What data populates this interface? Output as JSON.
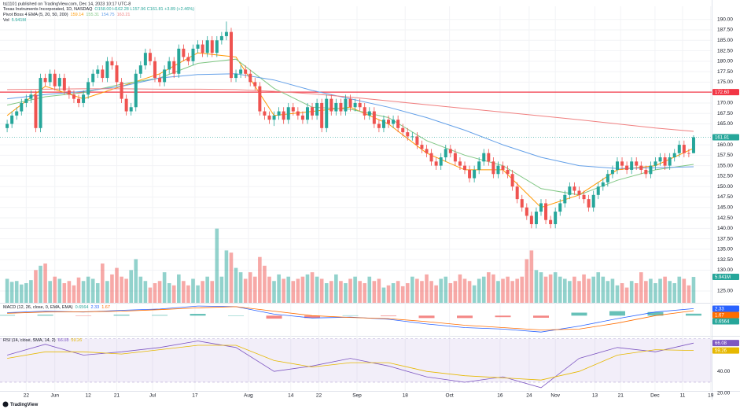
{
  "header": {
    "published": "ts|1101 published on TradingView.com, Dec 14, 2023 10:17 UTC-8",
    "footer": "TradingView"
  },
  "chart_data": {
    "type": "candlestick",
    "title": "Texas Instruments Incorporated, 1D, NASDAQ",
    "ohlc_text": "O158.00 H162.28 L157.96 C161.81 +3.89 (+2.46%)",
    "up_color": "#26a69a",
    "down_color": "#ef5350",
    "open": [
      164,
      165,
      167,
      168,
      170,
      171,
      172,
      164,
      176,
      175,
      177,
      174,
      176,
      173,
      172,
      171,
      170,
      172,
      175,
      177,
      178,
      176,
      180,
      179,
      175,
      171,
      168,
      169,
      177,
      179,
      182,
      180,
      176,
      175,
      178,
      180,
      177,
      183,
      181,
      180,
      183,
      184,
      182,
      185,
      182,
      185,
      186,
      187,
      176,
      177,
      178,
      177,
      175,
      174,
      168,
      167,
      166,
      167,
      168,
      166,
      169,
      168,
      167,
      166,
      169,
      167,
      170,
      164,
      171,
      168,
      170,
      168,
      171,
      169,
      170,
      169,
      167,
      168,
      165,
      164,
      166,
      165,
      166,
      164,
      163,
      162,
      162,
      160,
      159,
      158,
      156,
      155,
      157,
      159,
      158,
      156,
      155,
      154,
      152,
      154,
      156,
      158,
      156,
      153,
      155,
      154,
      153,
      150,
      147,
      145,
      143,
      141,
      144,
      146,
      142,
      141,
      144,
      146,
      148,
      150,
      149,
      148,
      147,
      145,
      148,
      150,
      151,
      153,
      154,
      156,
      155,
      154,
      156,
      155,
      154,
      153,
      155,
      156,
      157,
      155,
      157,
      158,
      160,
      158,
      158
    ],
    "high": [
      166,
      168,
      169,
      171,
      172,
      173,
      173,
      177,
      177,
      178,
      178,
      177,
      177,
      174,
      173,
      172,
      173,
      176,
      178,
      179,
      179,
      181,
      181,
      180,
      176,
      172,
      170,
      178,
      180,
      183,
      183,
      181,
      177,
      179,
      181,
      181,
      184,
      184,
      182,
      184,
      185,
      185,
      186,
      186,
      186,
      187,
      189.5,
      188,
      178,
      179,
      179,
      178,
      176,
      175,
      169,
      168,
      168,
      169,
      169,
      170,
      170,
      169,
      168,
      170,
      170,
      171,
      171,
      172,
      172,
      171,
      171,
      172,
      172,
      171,
      171,
      170,
      169,
      169,
      166,
      167,
      167,
      167,
      167,
      165,
      164,
      163,
      163,
      161,
      160,
      159,
      157,
      158,
      160,
      160,
      159,
      157,
      156,
      155,
      155,
      157,
      159,
      159,
      157,
      156,
      156,
      155,
      154,
      151,
      148,
      146,
      144,
      145,
      147,
      147,
      143,
      145,
      147,
      149,
      151,
      151,
      150,
      149,
      148,
      149,
      151,
      152,
      154,
      155,
      157,
      157,
      156,
      157,
      157,
      156,
      155,
      156,
      157,
      158,
      158,
      158,
      159,
      161,
      161,
      159,
      162.28
    ],
    "low": [
      163,
      164,
      166,
      167,
      169,
      170,
      163,
      163,
      174,
      174,
      173,
      173,
      172,
      171,
      170,
      169,
      169,
      171,
      174,
      176,
      175,
      175,
      178,
      174,
      170,
      167,
      167,
      168,
      176,
      178,
      179,
      175,
      174,
      174,
      177,
      176,
      176,
      180,
      179,
      179,
      182,
      181,
      181,
      181,
      181,
      184,
      185,
      175,
      175,
      176,
      176,
      174,
      173,
      167,
      166,
      165,
      164.5,
      166,
      165,
      165,
      167,
      166,
      165,
      165,
      166,
      166,
      163,
      163,
      167,
      167,
      167,
      167,
      168,
      168,
      168,
      166,
      166,
      164,
      163,
      163,
      164,
      164,
      163,
      162,
      161,
      161,
      159,
      158,
      157,
      155,
      154,
      154,
      156,
      157,
      155,
      154,
      153,
      151,
      151,
      153,
      155,
      155,
      152,
      152,
      153,
      152,
      149,
      146,
      144,
      142,
      140,
      140,
      143,
      141,
      140,
      140,
      143,
      145,
      147,
      148,
      147,
      146,
      144,
      144,
      147,
      149,
      150,
      152,
      153,
      154,
      153,
      153,
      154,
      153,
      152,
      152,
      154,
      155,
      154,
      154,
      156,
      157,
      157,
      157,
      157.96
    ],
    "close": [
      165,
      167,
      168,
      170,
      171,
      172,
      164,
      176,
      175,
      177,
      174,
      176,
      173,
      172,
      171,
      170,
      172,
      175,
      177,
      178,
      176,
      180,
      179,
      175,
      171,
      168,
      169,
      177,
      179,
      182,
      180,
      176,
      175,
      178,
      180,
      177,
      183,
      181,
      180,
      183,
      184,
      182,
      185,
      182,
      185,
      186,
      187,
      176,
      177,
      178,
      177,
      175,
      174,
      168,
      167,
      166,
      167,
      168,
      166,
      169,
      168,
      167,
      166,
      169,
      167,
      170,
      164,
      171,
      168,
      170,
      168,
      171,
      169,
      170,
      169,
      167,
      168,
      165,
      164,
      166,
      165,
      166,
      164,
      163,
      162,
      162,
      160,
      159,
      158,
      156,
      155,
      157,
      159,
      158,
      156,
      155,
      154,
      152,
      154,
      156,
      158,
      156,
      153,
      155,
      154,
      153,
      150,
      147,
      145,
      143,
      141,
      144,
      146,
      142,
      141,
      144,
      146,
      148,
      150,
      149,
      148,
      147,
      145,
      148,
      150,
      151,
      153,
      154,
      156,
      155,
      154,
      156,
      155,
      154,
      153,
      155,
      156,
      157,
      155,
      157,
      158,
      160,
      158,
      157.9,
      161.81
    ],
    "xlim": [
      -1.5,
      147.8
    ],
    "xticks": [
      {
        "value": 4,
        "label": "22"
      },
      {
        "value": 10,
        "label": "Jun"
      },
      {
        "value": 17,
        "label": "12"
      },
      {
        "value": 23,
        "label": "21"
      },
      {
        "value": 30.5,
        "label": "Jul"
      },
      {
        "value": 39.4,
        "label": "17"
      },
      {
        "value": 50.6,
        "label": "Aug"
      },
      {
        "value": 59.5,
        "label": "14"
      },
      {
        "value": 65.4,
        "label": "22"
      },
      {
        "value": 73.4,
        "label": "Sep"
      },
      {
        "value": 83.5,
        "label": "18"
      },
      {
        "value": 92.8,
        "label": "Oct"
      },
      {
        "value": 103.4,
        "label": "16"
      },
      {
        "value": 109.5,
        "label": "24"
      },
      {
        "value": 115,
        "label": "Nov"
      },
      {
        "value": 123.3,
        "label": "13"
      },
      {
        "value": 128.7,
        "label": "21"
      },
      {
        "value": 135.9,
        "label": "Dec"
      },
      {
        "value": 141.7,
        "label": "11"
      },
      {
        "value": 147.6,
        "label": "19"
      }
    ],
    "ylim": [
      125,
      190
    ],
    "yticks": [
      {
        "value": 190,
        "label": "190.00"
      },
      {
        "value": 187.5,
        "label": "187.50"
      },
      {
        "value": 185,
        "label": "185.00"
      },
      {
        "value": 182.5,
        "label": "182.50"
      },
      {
        "value": 180,
        "label": "180.00"
      },
      {
        "value": 177.5,
        "label": "177.50"
      },
      {
        "value": 175,
        "label": "175.00"
      },
      {
        "value": 170,
        "label": "170.00"
      },
      {
        "value": 167.5,
        "label": "167.50"
      },
      {
        "value": 165,
        "label": "165.00"
      },
      {
        "value": 160,
        "label": "160.00"
      },
      {
        "value": 157.5,
        "label": "157.50"
      },
      {
        "value": 155,
        "label": "155.00"
      },
      {
        "value": 152.5,
        "label": "152.50"
      },
      {
        "value": 150,
        "label": "150.00"
      },
      {
        "value": 147.5,
        "label": "147.50"
      },
      {
        "value": 145,
        "label": "145.00"
      },
      {
        "value": 142.5,
        "label": "142.50"
      },
      {
        "value": 140,
        "label": "140.00"
      },
      {
        "value": 137.5,
        "label": "137.50"
      },
      {
        "value": 135,
        "label": "135.00"
      },
      {
        "value": 132.5,
        "label": "132.50"
      },
      {
        "value": 130,
        "label": "130.00"
      },
      {
        "value": 125,
        "label": "125.00"
      }
    ],
    "hline": {
      "value": 172.6,
      "label": "172.60",
      "color": "#f23645"
    },
    "volume": {
      "name": "Vol",
      "ylim": [
        0,
        60
      ],
      "last_label": "5.941M",
      "values": [
        5.5,
        4.8,
        5,
        4.2,
        4.5,
        5.2,
        7.5,
        8.5,
        9,
        5,
        6,
        5.5,
        4.5,
        5,
        4,
        5.8,
        5,
        6,
        5.5,
        4.5,
        9,
        5,
        6.5,
        8,
        6,
        5.5,
        7.5,
        10,
        6,
        5,
        3.5,
        4.5,
        5,
        7,
        4.5,
        4,
        6.5,
        5,
        4,
        5.5,
        4,
        5,
        6,
        5,
        17,
        6,
        12,
        11.5,
        8,
        7,
        5.5,
        7,
        6,
        10.5,
        8.5,
        6,
        5,
        6.5,
        5.5,
        6,
        5,
        5.5,
        6,
        6.5,
        7,
        6,
        5.5,
        4.5,
        5,
        6.5,
        5,
        4.5,
        5.5,
        6,
        5,
        4.5,
        6,
        5,
        5.5,
        3.5,
        4,
        4.5,
        5,
        3.8,
        4.5,
        6,
        5.5,
        5,
        6.5,
        5,
        4,
        5.5,
        6,
        4.5,
        5,
        6.5,
        5.5,
        5,
        4,
        5.5,
        6,
        7,
        6.5,
        5,
        5.5,
        6,
        5,
        5.5,
        6,
        10,
        12,
        7.5,
        7,
        6,
        6.5,
        7,
        6,
        5.5,
        5,
        6,
        5,
        6.5,
        5.5,
        6,
        7,
        6,
        5,
        5.5,
        4,
        4.5,
        3.5,
        5,
        4.5,
        7,
        5,
        5.5,
        4.5,
        5.5,
        6,
        5,
        4.5,
        6,
        5.5,
        4,
        5.941
      ]
    },
    "indicator_x": [
      0,
      8,
      16,
      24,
      32,
      40,
      48,
      56,
      64,
      72,
      80,
      88,
      96,
      104,
      112,
      120,
      128,
      136,
      144
    ],
    "ema": {
      "name": "Pivot Boss 4 EMA (5, 20, 50, 200)",
      "series": [
        {
          "color": "#ff9800",
          "values": [
            167,
            174,
            171,
            174,
            177,
            182,
            181,
            167,
            168,
            169,
            165,
            158,
            154,
            154,
            145,
            148,
            154,
            155,
            159.14
          ]
        },
        {
          "color": "#81c784",
          "values": [
            169.5,
            171.5,
            172.5,
            174.5,
            176,
            179.5,
            180.5,
            173.5,
            169,
            168.5,
            166.5,
            161,
            157.5,
            155,
            149.5,
            148,
            151.5,
            154,
            155.31
          ]
        },
        {
          "color": "#64a0e8",
          "values": [
            171,
            172,
            172.8,
            174,
            176,
            176.8,
            177,
            175.5,
            173,
            171,
            169,
            166.5,
            163.5,
            160,
            157,
            155,
            154.3,
            154.5,
            154.75
          ]
        },
        {
          "color": "#f08080",
          "values": [
            173.2,
            173.3,
            173.4,
            173.4,
            173.3,
            173.3,
            173.2,
            172.8,
            172.2,
            171.4,
            170.5,
            169.6,
            168.7,
            167.8,
            166.9,
            166,
            165,
            164,
            163.21
          ]
        }
      ]
    },
    "macd": {
      "name": "MACD (12, 26, close, 0, EMA, EMA)",
      "ylim": [
        -6.5,
        3.5
      ],
      "series": [
        {
          "color": "#2962ff",
          "values": [
            1,
            1.5,
            1.2,
            1.8,
            2.2,
            3.2,
            3,
            0.5,
            -0.8,
            -0.5,
            -1.2,
            -2.8,
            -4,
            -4.5,
            -5.5,
            -3.5,
            -1,
            1.2,
            2.33
          ]
        },
        {
          "color": "#ff6d00",
          "values": [
            0.8,
            1.2,
            1.3,
            1.5,
            2,
            2.6,
            3,
            1.5,
            0,
            -0.6,
            -1,
            -2,
            -3.2,
            -4,
            -4.8,
            -4.5,
            -2.5,
            0,
            1.67
          ]
        }
      ],
      "histogram": {
        "up_color": "#26a69a",
        "down_color": "#ef5350",
        "values": [
          0.2,
          0.3,
          -0.1,
          0.3,
          0.2,
          0.6,
          0,
          -1,
          -0.8,
          0.1,
          -0.2,
          -0.8,
          -0.8,
          -0.5,
          -0.7,
          1,
          1.5,
          1.2,
          0.6564
        ]
      }
    },
    "rsi": {
      "name": "RSI (14, close, SMA, 14, 2)",
      "ylim": [
        22,
        72
      ],
      "band": [
        30,
        70
      ],
      "band_color": "#7e57c2",
      "yticks": [
        {
          "value": 40,
          "label": "40.00"
        },
        {
          "value": 20,
          "label": "20.00"
        }
      ],
      "series": [
        {
          "color": "#7e57c2",
          "values": [
            55,
            65,
            55,
            58,
            62,
            68,
            62,
            40,
            45,
            52,
            45,
            35,
            30,
            35,
            25,
            52,
            62,
            58,
            66.08
          ]
        },
        {
          "color": "#e6b800",
          "values": [
            52,
            58,
            58,
            56,
            60,
            64,
            64,
            50,
            44,
            48,
            48,
            40,
            36,
            34,
            32,
            40,
            55,
            60,
            59.26
          ]
        }
      ]
    }
  }
}
